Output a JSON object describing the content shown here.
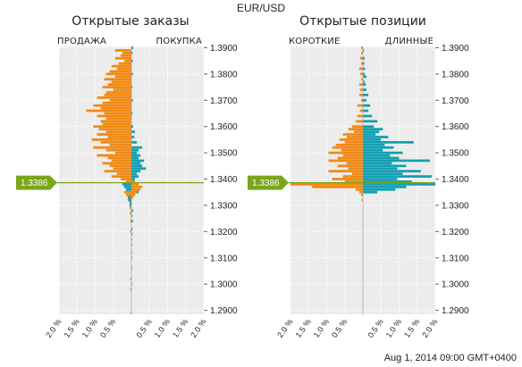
{
  "pair": "EUR/USD",
  "timestamp": "Aug 1, 2014 09:00 GMT+0400",
  "current_price": "1.3386",
  "colors": {
    "orange": "#f28a12",
    "teal": "#11a0b3",
    "price_line": "#7aa61b",
    "price_tag": "#7aa61b",
    "plot_bg": "#ececec",
    "grid": "#ffffff"
  },
  "chart_data": [
    {
      "type": "bar",
      "orientation": "horizontal-diverging",
      "title": "Открытые заказы",
      "left_label": "ПРОДАЖА",
      "right_label": "ПОКУПКА",
      "y_ticks": [
        "1.3900",
        "1.3800",
        "1.3700",
        "1.3600",
        "1.3500",
        "1.3400",
        "1.3300",
        "1.3200",
        "1.3100",
        "1.3000",
        "1.2900"
      ],
      "x_ticks": [
        "2.0 %",
        "1.5 %",
        "1.0 %",
        "0.5 %",
        "0.5 %",
        "1.0 %",
        "1.5 %",
        "2.0 %"
      ],
      "ylim": [
        1.2885,
        1.3905
      ],
      "xlim": [
        -2.0,
        2.0
      ],
      "current_price": 1.3386,
      "series": [
        {
          "name": "ПРОДАЖА",
          "color": "#f28a12",
          "points": [
            [
              1.389,
              -0.45
            ],
            [
              1.388,
              -0.25
            ],
            [
              1.387,
              -0.3
            ],
            [
              1.386,
              -0.45
            ],
            [
              1.385,
              -0.2
            ],
            [
              1.384,
              -0.35
            ],
            [
              1.383,
              -0.55
            ],
            [
              1.382,
              -0.4
            ],
            [
              1.381,
              -0.6
            ],
            [
              1.38,
              -0.7
            ],
            [
              1.379,
              -0.45
            ],
            [
              1.378,
              -0.75
            ],
            [
              1.377,
              -0.55
            ],
            [
              1.376,
              -0.65
            ],
            [
              1.375,
              -0.8
            ],
            [
              1.374,
              -0.5
            ],
            [
              1.373,
              -0.7
            ],
            [
              1.372,
              -0.75
            ],
            [
              1.371,
              -0.95
            ],
            [
              1.37,
              -0.6
            ],
            [
              1.369,
              -0.8
            ],
            [
              1.368,
              -1.05
            ],
            [
              1.367,
              -0.85
            ],
            [
              1.366,
              -1.25
            ],
            [
              1.365,
              -0.75
            ],
            [
              1.364,
              -0.95
            ],
            [
              1.363,
              -0.7
            ],
            [
              1.362,
              -0.85
            ],
            [
              1.361,
              -0.8
            ],
            [
              1.36,
              -1.05
            ],
            [
              1.359,
              -0.9
            ],
            [
              1.358,
              -0.7
            ],
            [
              1.357,
              -0.95
            ],
            [
              1.356,
              -0.65
            ],
            [
              1.355,
              -1.1
            ],
            [
              1.354,
              -0.85
            ],
            [
              1.353,
              -0.6
            ],
            [
              1.352,
              -1.05
            ],
            [
              1.351,
              -0.7
            ],
            [
              1.35,
              -0.45
            ],
            [
              1.349,
              -0.95
            ],
            [
              1.348,
              -0.65
            ],
            [
              1.347,
              -0.55
            ],
            [
              1.346,
              -0.8
            ],
            [
              1.345,
              -0.6
            ],
            [
              1.344,
              -0.5
            ],
            [
              1.343,
              -0.75
            ],
            [
              1.342,
              -0.4
            ],
            [
              1.341,
              -0.55
            ],
            [
              1.34,
              -0.3
            ],
            [
              1.339,
              -0.15
            ],
            [
              1.338,
              -0.2
            ],
            [
              1.337,
              -0.1
            ],
            [
              1.336,
              -0.15
            ],
            [
              1.335,
              -0.2
            ],
            [
              1.334,
              -0.15
            ],
            [
              1.333,
              -0.1
            ],
            [
              1.332,
              -0.1
            ],
            [
              1.331,
              -0.05
            ],
            [
              1.33,
              -0.05
            ],
            [
              1.329,
              -0.05
            ],
            [
              1.327,
              -0.05
            ],
            [
              1.324,
              -0.03
            ],
            [
              1.32,
              -0.03
            ],
            [
              1.302,
              -0.03
            ],
            [
              1.298,
              -0.03
            ],
            [
              1.289,
              -0.02
            ]
          ]
        },
        {
          "name": "ПОКУПКА",
          "color": "#11a0b3",
          "points": [
            [
              1.39,
              0.05
            ],
            [
              1.388,
              0.03
            ],
            [
              1.385,
              0.04
            ],
            [
              1.38,
              0.04
            ],
            [
              1.375,
              0.03
            ],
            [
              1.37,
              0.04
            ],
            [
              1.365,
              0.03
            ],
            [
              1.36,
              0.05
            ],
            [
              1.358,
              0.1
            ],
            [
              1.356,
              0.08
            ],
            [
              1.354,
              0.15
            ],
            [
              1.352,
              0.3
            ],
            [
              1.351,
              0.2
            ],
            [
              1.35,
              0.15
            ],
            [
              1.349,
              0.25
            ],
            [
              1.348,
              0.2
            ],
            [
              1.347,
              0.35
            ],
            [
              1.346,
              0.25
            ],
            [
              1.345,
              0.3
            ],
            [
              1.344,
              0.4
            ],
            [
              1.343,
              0.25
            ],
            [
              1.342,
              0.15
            ],
            [
              1.341,
              0.2
            ],
            [
              1.34,
              0.1
            ],
            [
              1.339,
              0.05
            ],
            [
              1.338,
              -0.25
            ],
            [
              1.337,
              -0.2
            ],
            [
              1.336,
              -0.15
            ],
            [
              1.335,
              0.2
            ],
            [
              1.334,
              0.05
            ],
            [
              1.333,
              -0.1
            ],
            [
              1.332,
              -0.08
            ],
            [
              1.331,
              -0.05
            ],
            [
              1.33,
              -0.05
            ],
            [
              1.328,
              0.05
            ],
            [
              1.326,
              0.03
            ],
            [
              1.324,
              0.04
            ],
            [
              1.321,
              0.03
            ],
            [
              1.319,
              0.03
            ],
            [
              1.317,
              0.02
            ],
            [
              1.315,
              0.02
            ],
            [
              1.312,
              0.02
            ],
            [
              1.31,
              0.02
            ],
            [
              1.306,
              0.02
            ],
            [
              1.3,
              0.02
            ]
          ]
        },
        {
          "name": "ПОКУПКА",
          "color": "#f28a12",
          "points": [
            [
              1.339,
              0.1
            ],
            [
              1.338,
              0.2
            ],
            [
              1.337,
              0.3
            ],
            [
              1.336,
              0.25
            ],
            [
              1.335,
              0.15
            ],
            [
              1.334,
              0.1
            ],
            [
              1.333,
              0.05
            ]
          ]
        }
      ]
    },
    {
      "type": "bar",
      "orientation": "horizontal-diverging",
      "title": "Открытые позиции",
      "left_label": "КОРОТКИЕ",
      "right_label": "ДЛИННЫЕ",
      "y_ticks": [
        "1.3900",
        "1.3800",
        "1.3700",
        "1.3600",
        "1.3500",
        "1.3400",
        "1.3300",
        "1.3200",
        "1.3100",
        "1.3000",
        "1.2900"
      ],
      "x_ticks": [
        "2.0 %",
        "1.5 %",
        "1.0 %",
        "0.5 %",
        "0.5 %",
        "1.0 %",
        "1.5 %",
        "2.0 %"
      ],
      "ylim": [
        1.2885,
        1.3905
      ],
      "xlim": [
        -2.0,
        2.0
      ],
      "current_price": 1.3386,
      "series": [
        {
          "name": "КОРОТКИЕ",
          "color": "#f28a12",
          "points": [
            [
              1.39,
              -0.05
            ],
            [
              1.388,
              -0.05
            ],
            [
              1.386,
              -0.08
            ],
            [
              1.384,
              -0.05
            ],
            [
              1.382,
              -0.1
            ],
            [
              1.38,
              -0.08
            ],
            [
              1.378,
              -0.05
            ],
            [
              1.376,
              -0.1
            ],
            [
              1.374,
              -0.08
            ],
            [
              1.372,
              -0.1
            ],
            [
              1.37,
              -0.05
            ],
            [
              1.368,
              -0.15
            ],
            [
              1.366,
              -0.08
            ],
            [
              1.364,
              -0.15
            ],
            [
              1.362,
              -0.2
            ],
            [
              1.36,
              -0.3
            ],
            [
              1.359,
              -0.4
            ],
            [
              1.358,
              -0.25
            ],
            [
              1.357,
              -0.55
            ],
            [
              1.356,
              -0.45
            ],
            [
              1.355,
              -0.65
            ],
            [
              1.354,
              -0.5
            ],
            [
              1.353,
              -0.75
            ],
            [
              1.352,
              -0.85
            ],
            [
              1.351,
              -0.6
            ],
            [
              1.35,
              -0.95
            ],
            [
              1.349,
              -0.55
            ],
            [
              1.348,
              -0.7
            ],
            [
              1.347,
              -0.95
            ],
            [
              1.346,
              -0.45
            ],
            [
              1.345,
              -0.7
            ],
            [
              1.344,
              -0.4
            ],
            [
              1.343,
              -0.95
            ],
            [
              1.342,
              -0.3
            ],
            [
              1.341,
              -0.55
            ],
            [
              1.34,
              -0.85
            ],
            [
              1.339,
              -0.5
            ],
            [
              1.338,
              -2.0
            ],
            [
              1.337,
              -1.4
            ],
            [
              1.336,
              -0.2
            ],
            [
              1.335,
              -0.1
            ],
            [
              1.334,
              -0.05
            ],
            [
              1.332,
              -0.03
            ]
          ]
        },
        {
          "name": "ДЛИННЫЕ",
          "color": "#11a0b3",
          "points": [
            [
              1.389,
              0.03
            ],
            [
              1.386,
              0.05
            ],
            [
              1.384,
              0.04
            ],
            [
              1.382,
              0.06
            ],
            [
              1.38,
              0.05
            ],
            [
              1.379,
              0.1
            ],
            [
              1.377,
              0.05
            ],
            [
              1.376,
              0.08
            ],
            [
              1.374,
              0.1
            ],
            [
              1.372,
              0.15
            ],
            [
              1.37,
              0.1
            ],
            [
              1.368,
              0.2
            ],
            [
              1.366,
              0.15
            ],
            [
              1.364,
              0.25
            ],
            [
              1.362,
              0.4
            ],
            [
              1.36,
              0.3
            ],
            [
              1.359,
              0.55
            ],
            [
              1.358,
              0.45
            ],
            [
              1.357,
              0.35
            ],
            [
              1.356,
              0.7
            ],
            [
              1.355,
              0.5
            ],
            [
              1.354,
              1.4
            ],
            [
              1.353,
              0.6
            ],
            [
              1.352,
              0.85
            ],
            [
              1.351,
              0.55
            ],
            [
              1.35,
              1.1
            ],
            [
              1.349,
              0.75
            ],
            [
              1.348,
              1.0
            ],
            [
              1.347,
              1.85
            ],
            [
              1.346,
              0.8
            ],
            [
              1.345,
              1.2
            ],
            [
              1.344,
              0.95
            ],
            [
              1.343,
              1.6
            ],
            [
              1.342,
              1.1
            ],
            [
              1.341,
              1.9
            ],
            [
              1.34,
              0.95
            ],
            [
              1.339,
              1.35
            ],
            [
              1.338,
              2.0
            ],
            [
              1.337,
              1.2
            ],
            [
              1.336,
              0.9
            ],
            [
              1.335,
              0.4
            ]
          ]
        }
      ]
    }
  ]
}
